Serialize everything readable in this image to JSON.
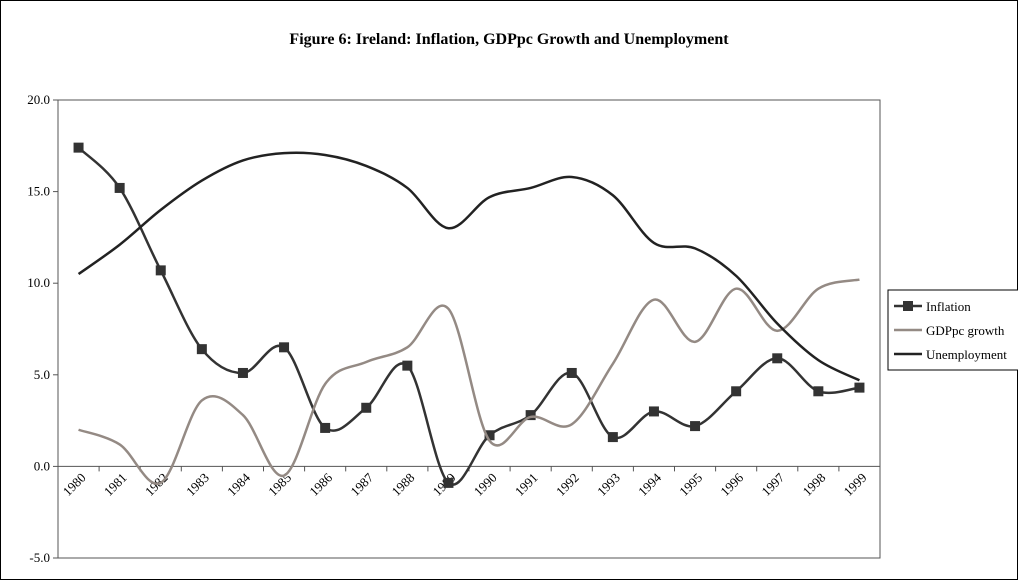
{
  "chart_data": {
    "type": "line",
    "title": "Figure 6: Ireland: Inflation, GDPpc Growth and Unemployment",
    "categories": [
      "1980",
      "1981",
      "1982",
      "1983",
      "1984",
      "1985",
      "1986",
      "1987",
      "1988",
      "1989",
      "1990",
      "1991",
      "1992",
      "1993",
      "1994",
      "1995",
      "1996",
      "1997",
      "1998",
      "1999"
    ],
    "series": [
      {
        "name": "Inflation",
        "color": "#333333",
        "marker": "square",
        "values": [
          17.4,
          15.2,
          10.7,
          6.4,
          5.1,
          6.5,
          2.1,
          3.2,
          5.5,
          -0.9,
          1.7,
          2.8,
          5.1,
          1.6,
          3.0,
          2.2,
          4.1,
          5.9,
          4.1,
          4.3
        ]
      },
      {
        "name": "GDPpc growth",
        "color": "#948a84",
        "values": [
          2.0,
          1.2,
          -0.9,
          3.6,
          2.8,
          -0.5,
          4.5,
          5.7,
          6.5,
          8.6,
          1.4,
          2.7,
          2.3,
          5.6,
          9.1,
          6.8,
          9.7,
          7.4,
          9.7,
          10.2
        ]
      },
      {
        "name": "Unemployment",
        "color": "#222222",
        "values": [
          10.5,
          12.1,
          14.0,
          15.6,
          16.7,
          17.1,
          17.0,
          16.4,
          15.2,
          13.0,
          14.7,
          15.2,
          15.8,
          14.8,
          12.2,
          11.9,
          10.4,
          7.8,
          5.8,
          4.7
        ]
      }
    ],
    "ylim": [
      -5,
      20
    ],
    "yticks": [
      {
        "value": -5,
        "label": "-5.0"
      },
      {
        "value": 0,
        "label": "0.0"
      },
      {
        "value": 5,
        "label": "5.0"
      },
      {
        "value": 10,
        "label": "10.0"
      },
      {
        "value": 15,
        "label": "15.0"
      },
      {
        "value": 20,
        "label": "20.0"
      }
    ],
    "legend": "right"
  }
}
